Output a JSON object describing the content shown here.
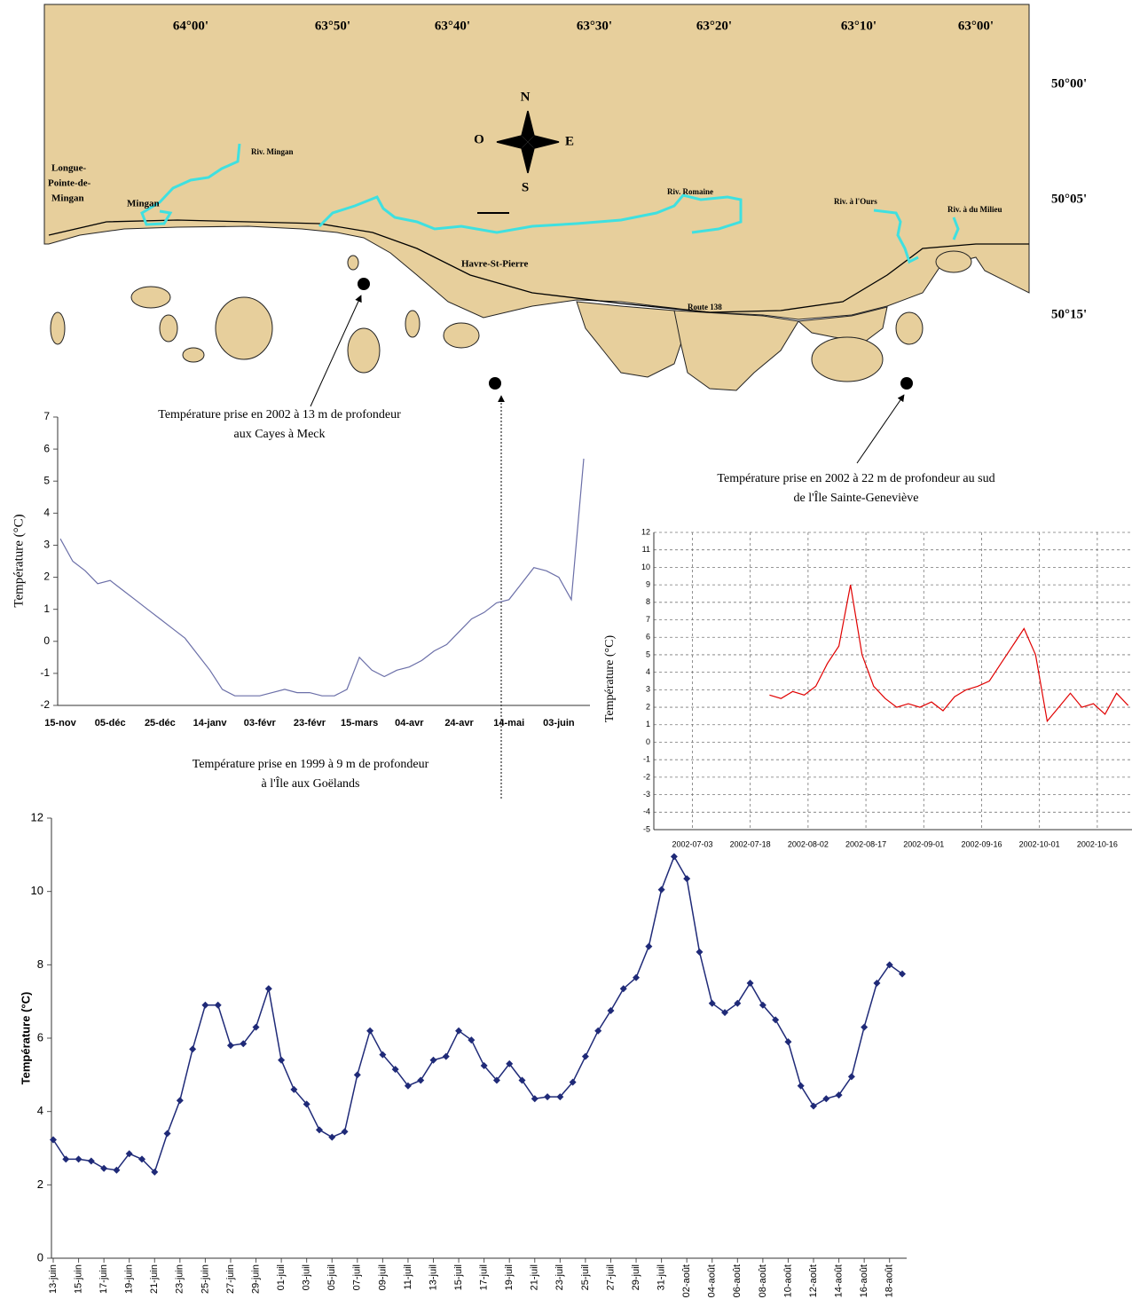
{
  "map": {
    "longitudes": [
      "64°00'",
      "63°50'",
      "63°40'",
      "63°30'",
      "63°20'",
      "63°10'",
      "63°00'"
    ],
    "latitudes": [
      "50°00'",
      "50°05'",
      "50°15'"
    ],
    "compass": {
      "north": "N",
      "south": "S",
      "east": "E",
      "west": "O"
    },
    "places": [
      "Riv. Mingan",
      "Longue-",
      "Pointe-de-",
      "Mingan",
      "Mingan",
      "Riv. Romaine",
      "Riv. à l'Ours",
      "Riv. à du Milieu",
      "Havre-St-Pierre",
      "Route 138"
    ],
    "annotations": [
      [
        "Température prise en 2002 à 13 m de profondeur",
        "aux Cayes à Meck"
      ],
      [
        "Température prise en 2002 à 22 m de profondeur au sud",
        "de l'Île Sainte-Geneviève"
      ],
      [
        "Température prise en 1999 à 9 m de profondeur",
        "à l'Île aux Goëlands"
      ]
    ]
  },
  "chart_data": [
    {
      "type": "line",
      "ylabel": "Température (°C)",
      "color": "#6b6fa8",
      "categories": [
        "15-nov",
        null,
        null,
        null,
        "05-déc",
        null,
        null,
        null,
        "25-déc",
        null,
        null,
        null,
        "14-janv",
        null,
        null,
        null,
        "03-févr",
        null,
        null,
        null,
        "23-févr",
        null,
        null,
        null,
        "15-mars",
        null,
        null,
        null,
        "04-avr",
        null,
        null,
        null,
        "24-avr",
        null,
        null,
        null,
        "14-mai",
        null,
        null,
        null,
        "03-juin",
        null,
        null
      ],
      "values": [
        3.2,
        2.5,
        2.2,
        1.8,
        1.9,
        1.6,
        1.3,
        1.0,
        0.7,
        0.4,
        0.1,
        -0.4,
        -0.9,
        -1.5,
        -1.7,
        -1.7,
        -1.7,
        -1.6,
        -1.5,
        -1.6,
        -1.6,
        -1.7,
        -1.7,
        -1.5,
        -0.5,
        -0.9,
        -1.1,
        -0.9,
        -0.8,
        -0.6,
        -0.3,
        -0.1,
        0.3,
        0.7,
        0.9,
        1.2,
        1.3,
        1.8,
        2.3,
        2.2,
        2.0,
        1.3,
        5.7
      ],
      "ylim": [
        -2,
        7
      ],
      "yticks": [
        -2,
        -1,
        0,
        1,
        2,
        3,
        4,
        5,
        6,
        7
      ],
      "grid": false
    },
    {
      "type": "line",
      "ylabel": "Température (°C)",
      "color": "#e00000",
      "x": [
        "2002-07-23",
        "2002-07-26",
        "2002-07-29",
        "2002-08-01",
        "2002-08-04",
        "2002-08-07",
        "2002-08-10",
        "2002-08-13",
        "2002-08-16",
        "2002-08-19",
        "2002-08-22",
        "2002-08-25",
        "2002-08-28",
        "2002-08-31",
        "2002-09-03",
        "2002-09-06",
        "2002-09-09",
        "2002-09-12",
        "2002-09-15",
        "2002-09-18",
        "2002-09-21",
        "2002-09-24",
        "2002-09-27",
        "2002-09-30",
        "2002-10-03",
        "2002-10-06",
        "2002-10-09",
        "2002-10-12",
        "2002-10-15",
        "2002-10-18",
        "2002-10-21",
        "2002-10-24"
      ],
      "values": [
        2.7,
        2.5,
        2.9,
        2.7,
        3.2,
        4.5,
        5.5,
        9.0,
        5.0,
        3.2,
        2.5,
        2.0,
        2.2,
        2.0,
        2.3,
        1.8,
        2.6,
        3.0,
        3.2,
        3.5,
        4.5,
        5.5,
        6.5,
        5.0,
        1.2,
        2.0,
        2.8,
        2.0,
        2.2,
        1.6,
        2.8,
        2.1
      ],
      "xlim": [
        "2002-06-23",
        "2002-10-25"
      ],
      "xticks": [
        "2002-07-03",
        "2002-07-18",
        "2002-08-02",
        "2002-08-17",
        "2002-09-01",
        "2002-09-16",
        "2002-10-01",
        "2002-10-16"
      ],
      "ylim": [
        -5,
        12
      ],
      "yticks": [
        -5,
        -4,
        -3,
        -2,
        -1,
        0,
        1,
        2,
        3,
        4,
        5,
        6,
        7,
        8,
        9,
        10,
        11,
        12
      ],
      "grid": true
    },
    {
      "type": "line",
      "ylabel": "Température (°C)",
      "color": "#1f2a78",
      "marker": "diamond",
      "categories": [
        "13-juin",
        null,
        "15-juin",
        null,
        "17-juin",
        null,
        "19-juin",
        null,
        "21-juin",
        null,
        "23-juin",
        null,
        "25-juin",
        null,
        "27-juin",
        null,
        "29-juin",
        null,
        "01-juil",
        null,
        "03-juil",
        null,
        "05-juil",
        null,
        "07-juil",
        null,
        "09-juil",
        null,
        "11-juil",
        null,
        "13-juil",
        null,
        "15-juil",
        null,
        "17-juil",
        null,
        "19-juil",
        null,
        "21-juil",
        null,
        "23-juil",
        null,
        "25-juil",
        null,
        "27-juil",
        null,
        "29-juil",
        null,
        "31-juil",
        null,
        "02-août",
        null,
        "04-août",
        null,
        "06-août",
        null,
        "08-août",
        null,
        "10-août",
        null,
        "12-août",
        null,
        "14-août",
        null,
        "16-août",
        null,
        "18-août",
        null
      ],
      "values": [
        3.23,
        2.7,
        2.7,
        2.65,
        2.45,
        2.4,
        2.85,
        2.7,
        2.35,
        3.4,
        4.3,
        5.7,
        6.9,
        6.9,
        5.8,
        5.85,
        6.3,
        7.35,
        5.4,
        4.6,
        4.2,
        3.5,
        3.3,
        3.45,
        5.0,
        6.2,
        5.55,
        5.15,
        4.7,
        4.85,
        5.4,
        5.5,
        6.2,
        5.95,
        5.25,
        4.85,
        5.3,
        4.85,
        4.35,
        4.4,
        4.4,
        4.8,
        5.5,
        6.2,
        6.75,
        7.35,
        7.65,
        8.5,
        10.05,
        10.95,
        10.35,
        8.35,
        6.95,
        6.7,
        6.95,
        7.5,
        6.9,
        6.5,
        5.9,
        4.7,
        4.15,
        4.35,
        4.45,
        4.95,
        6.3,
        7.5,
        8.0,
        7.75
      ],
      "ylim": [
        0,
        12
      ],
      "yticks": [
        0,
        2,
        4,
        6,
        8,
        10,
        12
      ],
      "grid": false
    }
  ]
}
